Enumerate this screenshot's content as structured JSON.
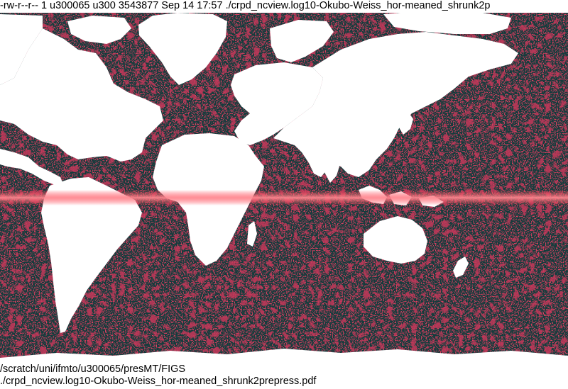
{
  "header": {
    "file_info_line": "-rw-r--r-- 1 u300065 u300 3543877 Sep 14 17:57 ./crpd_ncview.log10-Okubo-Weiss_hor-meaned_shrunk2p"
  },
  "footer": {
    "path_line": "/scratch/uni/ifmto/u300065/presMT/FIGS",
    "file_line": "./crpd_ncview.log10-Okubo-Weiss_hor-meaned_shrunk2prepress.pdf"
  },
  "map": {
    "ocean_color": "#123c3c",
    "ocean_highlight_color": "#2f6c6c",
    "field_color": "#c01020",
    "field_highlight_color": "#ff6070",
    "land_color": "#ffffff"
  }
}
